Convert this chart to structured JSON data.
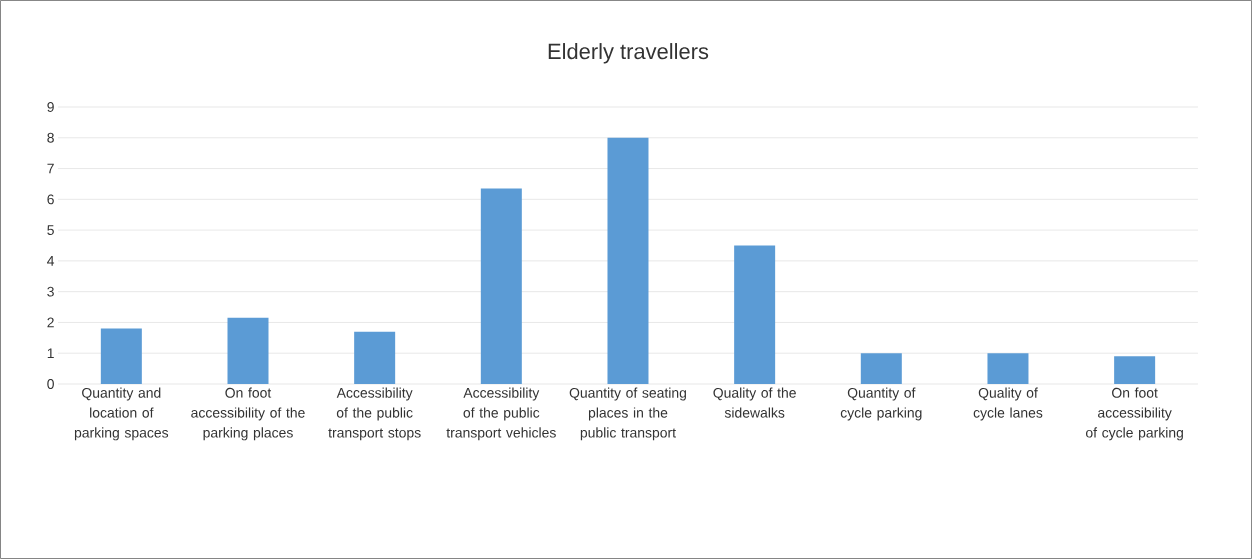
{
  "chart_data": {
    "type": "bar",
    "title": "Elderly travellers",
    "categories": [
      "Quantity and location of parking spaces",
      "On foot accessibility of the parking places",
      "Accessibility of the public transport stops",
      "Accessibility of the public transport vehicles",
      "Quantity of seating places in the public transport",
      "Quality of the sidewalks",
      "Quantity of cycle parking",
      "Quality of cycle lanes",
      "On foot accessibility of cycle parking"
    ],
    "values": [
      1.8,
      2.15,
      1.7,
      6.35,
      8,
      4.5,
      1,
      1,
      0.9
    ],
    "color": "#5b9bd5",
    "ylim": [
      0,
      9
    ],
    "yticks": [
      0,
      1,
      2,
      3,
      4,
      5,
      6,
      7,
      8,
      9
    ],
    "grid": "y"
  }
}
